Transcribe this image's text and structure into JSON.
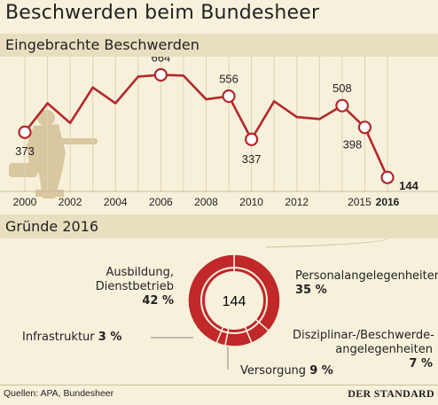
{
  "title": "Beschwerden beim Bundesheer",
  "section1_title": "Eingebrachte Beschwerden",
  "section2_title": "Gründe 2016",
  "source": "Quellen: APA, Bundesheer",
  "logo": "DER STANDARD",
  "colors": {
    "line": "#b5282a",
    "donut": "#c0282a",
    "band": "#e8dfc0",
    "background": "#f7f1dc"
  },
  "chart_data": [
    {
      "type": "line",
      "x": [
        2000,
        2001,
        2002,
        2003,
        2004,
        2005,
        2006,
        2007,
        2008,
        2009,
        2010,
        2011,
        2012,
        2013,
        2014,
        2015,
        2016
      ],
      "values": [
        373,
        520,
        420,
        600,
        520,
        655,
        664,
        660,
        540,
        556,
        337,
        530,
        450,
        440,
        508,
        398,
        144
      ],
      "x_tick_labels": [
        "2000",
        "2002",
        "2004",
        "2006",
        "2008",
        "2010",
        "2012",
        "2015",
        "2016"
      ],
      "point_labels": [
        {
          "year": 2000,
          "value": 373,
          "text": "373"
        },
        {
          "year": 2006,
          "value": 664,
          "text": "664"
        },
        {
          "year": 2009,
          "value": 556,
          "text": "556"
        },
        {
          "year": 2010,
          "value": 337,
          "text": "337"
        },
        {
          "year": 2014,
          "value": 508,
          "text": "508"
        },
        {
          "year": 2015,
          "value": 398,
          "text": "398"
        },
        {
          "year": 2016,
          "value": 144,
          "text": "144"
        }
      ],
      "ylim": [
        100,
        720
      ],
      "grid": "vertical"
    },
    {
      "type": "pie",
      "center_label": "144",
      "slices": [
        {
          "label": "Personalangelegenheiten",
          "value": 35,
          "pct": "35 %"
        },
        {
          "label": "Disziplinar-/Beschwerde-angelegenheiten",
          "value": 7,
          "pct": "7 %"
        },
        {
          "label": "Versorgung",
          "value": 9,
          "pct": "9 %"
        },
        {
          "label": "Infrastruktur",
          "value": 3,
          "pct": "3 %"
        },
        {
          "label": "Ausbildung, Dienstbetrieb",
          "value": 42,
          "pct": "42 %"
        }
      ]
    }
  ]
}
